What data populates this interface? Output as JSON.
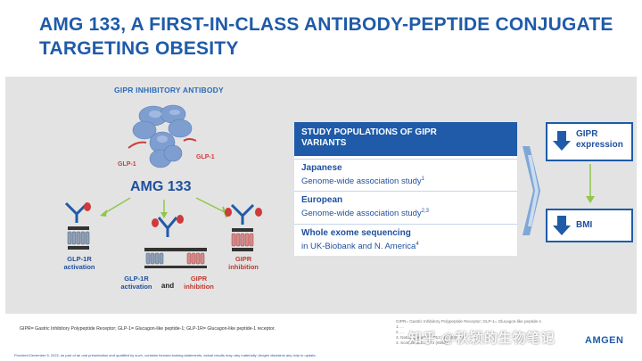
{
  "slide": {
    "title_line1": "AMG 133, A FIRST-IN-CLASS ANTIBODY-PEPTIDE CONJUGATE",
    "title_line2": "TARGETING OBESITY"
  },
  "left_panel": {
    "header": "GIPR INHIBITORY ANTIBODY",
    "glp1_left": "GLP-1",
    "glp1_right": "GLP-1",
    "drug_name": "AMG 133",
    "receptor1_line1": "GLP-1R",
    "receptor1_line2": "activation",
    "receptor2_line1": "GLP-1R",
    "receptor2_line2": "activation",
    "and_word": "and",
    "receptor3_line1": "GIPR",
    "receptor3_line2": "inhibition",
    "receptor4_line1": "GIPR",
    "receptor4_line2": "inhibition"
  },
  "table": {
    "header_line1": "STUDY POPULATIONS OF GIPR",
    "header_line2": "VARIANTS",
    "rows": [
      {
        "title": "Japanese",
        "subtitle": "Genome-wide association study",
        "sup": "1"
      },
      {
        "title": "European",
        "subtitle": "Genome-wide association study",
        "sup": "2,3"
      },
      {
        "title": "Whole exome sequencing",
        "subtitle": "in UK-Biobank and N. America",
        "sup": "4"
      }
    ]
  },
  "outcomes": {
    "top_line1": "GIPR",
    "top_line2": "expression",
    "bottom": "BMI"
  },
  "footer": {
    "footnote": "GIPR= Gastric Inhibitory Polypeptide Receptor; GLP-1= Glucagon-like peptide-1; GLP-1R= Glucagon-like peptide-1 receptor.",
    "refs": [
      "GIPR= Gastric Inhibitory Polypeptide Receptor; GLP-1= Glucagon-like peptide-1",
      "1. ...",
      "2. ...",
      "3. Nature Genetics 2012; 44: 302-306",
      "4. Science 2021; 373 (6550)"
    ],
    "bottom_line": "Provided December 5, 2022, as part of an oral presentation and qualified by such, contains forward-looking statements, actual results may vary materially; Amgen disclaims any duty to update.",
    "logo": "AMGEN",
    "watermark": "知乎 @秋颖的生物笔记"
  },
  "colors": {
    "brand_blue": "#1f5ba8",
    "accent_red": "#d03a3a",
    "arrow_green": "#8fc74a",
    "band_gray": "#e3e3e3"
  }
}
